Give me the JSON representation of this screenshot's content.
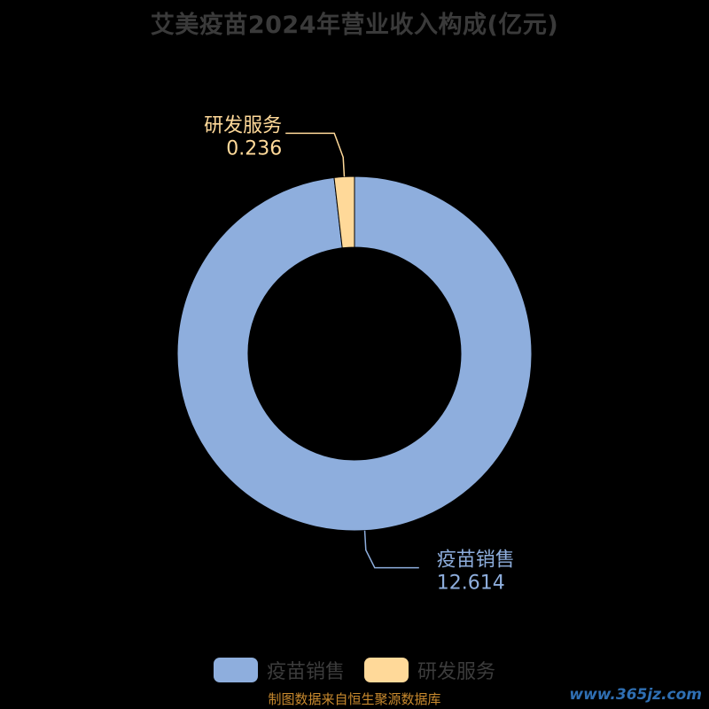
{
  "chart_data": {
    "type": "pie",
    "title": "艾美疫苗2024年营业收入构成(亿元)",
    "donut": true,
    "series": [
      {
        "name": "疫苗销售",
        "value": 12.614,
        "label": "12.614",
        "color": "#8eaedd"
      },
      {
        "name": "研发服务",
        "value": 0.236,
        "label": "0.236",
        "color": "#ffd999"
      }
    ],
    "legend_position": "bottom"
  },
  "footer": {
    "source": "制图数据来自恒生聚源数据库",
    "watermark": "www.365jz.com"
  }
}
